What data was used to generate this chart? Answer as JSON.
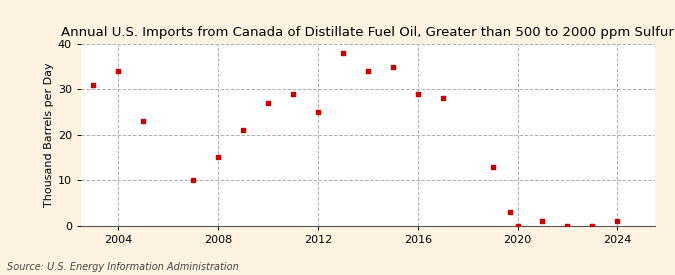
{
  "title": "Annual U.S. Imports from Canada of Distillate Fuel Oil, Greater than 500 to 2000 ppm Sulfur",
  "ylabel": "Thousand Barrels per Day",
  "source": "Source: U.S. Energy Information Administration",
  "background_color": "#fdf3e0",
  "plot_bg_color": "#ffffff",
  "marker_color": "#cc0000",
  "years": [
    2003,
    2004,
    2005,
    2007,
    2008,
    2009,
    2010,
    2011,
    2012,
    2013,
    2014,
    2015,
    2016,
    2017,
    2019,
    2019.7,
    2020,
    2021,
    2022,
    2023,
    2024
  ],
  "values": [
    31,
    34,
    23,
    10,
    15,
    21,
    27,
    29,
    25,
    38,
    34,
    35,
    29,
    28,
    13,
    3,
    0,
    1,
    0,
    0,
    1
  ],
  "xlim": [
    2002.5,
    2025.5
  ],
  "ylim": [
    0,
    40
  ],
  "xticks": [
    2004,
    2008,
    2012,
    2016,
    2020,
    2024
  ],
  "yticks": [
    0,
    10,
    20,
    30,
    40
  ],
  "grid_color": "#b0b0b0",
  "title_fontsize": 9.5,
  "tick_fontsize": 8,
  "ylabel_fontsize": 8,
  "source_fontsize": 7
}
